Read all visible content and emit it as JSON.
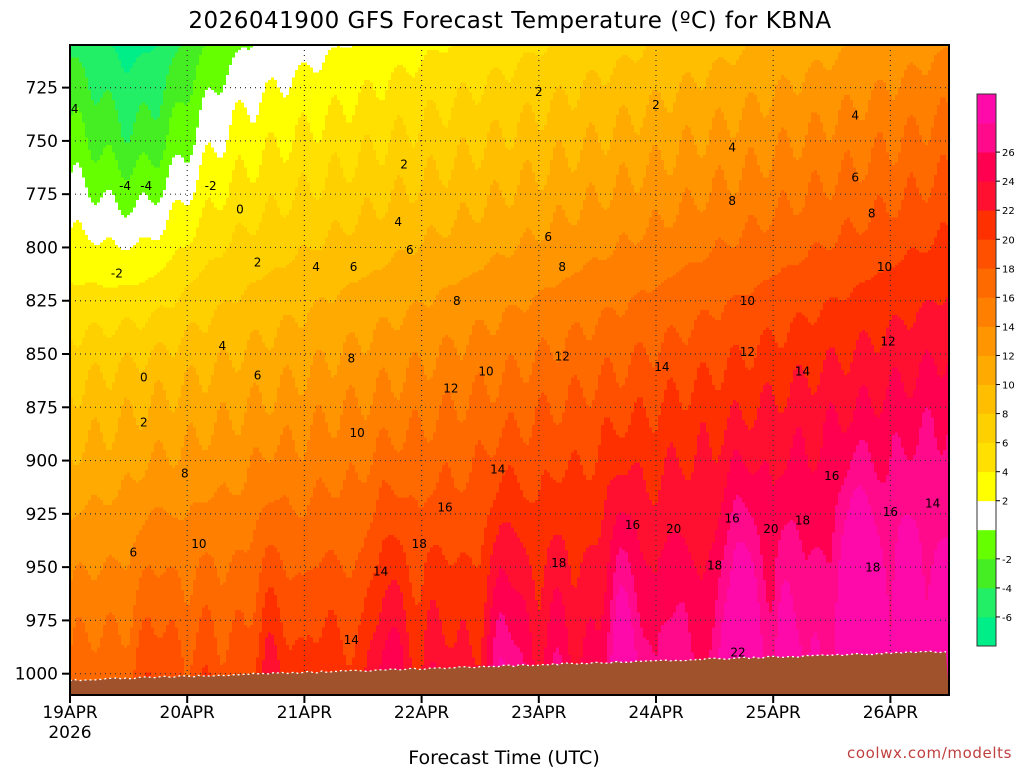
{
  "chart_data": {
    "type": "heatmap",
    "title": "2026041900 GFS Forecast Temperature (ºC) for KBNA",
    "xlabel": "Forecast Time (UTC)",
    "ylabel": "",
    "credit": "coolwx.com/modelts",
    "x_ticks": [
      "19APR",
      "20APR",
      "21APR",
      "22APR",
      "23APR",
      "24APR",
      "25APR",
      "26APR"
    ],
    "x_tick_sub": "2026",
    "xlim_days": [
      0,
      7.5
    ],
    "y_ticks": [
      725,
      750,
      775,
      800,
      825,
      850,
      875,
      900,
      925,
      950,
      975,
      1000
    ],
    "ylim_hpa": [
      1010,
      705
    ],
    "colorbar": {
      "ticks": [
        26,
        24,
        22,
        20,
        18,
        16,
        14,
        12,
        10,
        8,
        6,
        4,
        2,
        -2,
        -4,
        -6
      ],
      "levels": [
        -8,
        -6,
        -4,
        -2,
        0,
        2,
        4,
        6,
        8,
        10,
        12,
        14,
        16,
        18,
        20,
        22,
        24,
        26,
        28
      ],
      "colors": [
        "#00ee88",
        "#22ee66",
        "#44ee22",
        "#66ff00",
        "#ffffff",
        "#ffff00",
        "#ffe000",
        "#ffd000",
        "#ffbf00",
        "#ffaa00",
        "#ff9500",
        "#ff7f00",
        "#ff6a00",
        "#ff5000",
        "#ff3000",
        "#ff1030",
        "#ff0050",
        "#ff0a8a",
        "#ff0aaa"
      ]
    },
    "contour_labels": [
      {
        "day": 0.04,
        "hpa": 737,
        "text": "4"
      },
      {
        "day": 0.47,
        "hpa": 773,
        "text": "-4"
      },
      {
        "day": 0.65,
        "hpa": 773,
        "text": "-4"
      },
      {
        "day": 1.2,
        "hpa": 773,
        "text": "-2"
      },
      {
        "day": 0.4,
        "hpa": 814,
        "text": "-2"
      },
      {
        "day": 1.45,
        "hpa": 784,
        "text": "0"
      },
      {
        "day": 0.63,
        "hpa": 863,
        "text": "0"
      },
      {
        "day": 0.63,
        "hpa": 884,
        "text": "2"
      },
      {
        "day": 1.6,
        "hpa": 809,
        "text": "2"
      },
      {
        "day": 2.85,
        "hpa": 763,
        "text": "2"
      },
      {
        "day": 4.0,
        "hpa": 729,
        "text": "2"
      },
      {
        "day": 5.0,
        "hpa": 735,
        "text": "2"
      },
      {
        "day": 1.3,
        "hpa": 848,
        "text": "4"
      },
      {
        "day": 2.1,
        "hpa": 811,
        "text": "4"
      },
      {
        "day": 2.8,
        "hpa": 790,
        "text": "4"
      },
      {
        "day": 5.65,
        "hpa": 755,
        "text": "4"
      },
      {
        "day": 6.7,
        "hpa": 740,
        "text": "4"
      },
      {
        "day": 0.54,
        "hpa": 945,
        "text": "6"
      },
      {
        "day": 1.6,
        "hpa": 862,
        "text": "6"
      },
      {
        "day": 2.42,
        "hpa": 811,
        "text": "6"
      },
      {
        "day": 2.9,
        "hpa": 803,
        "text": "6"
      },
      {
        "day": 4.08,
        "hpa": 797,
        "text": "6"
      },
      {
        "day": 6.7,
        "hpa": 769,
        "text": "6"
      },
      {
        "day": 0.98,
        "hpa": 908,
        "text": "8"
      },
      {
        "day": 2.4,
        "hpa": 854,
        "text": "8"
      },
      {
        "day": 3.3,
        "hpa": 827,
        "text": "8"
      },
      {
        "day": 4.2,
        "hpa": 811,
        "text": "8"
      },
      {
        "day": 5.65,
        "hpa": 780,
        "text": "8"
      },
      {
        "day": 6.84,
        "hpa": 786,
        "text": "8"
      },
      {
        "day": 1.1,
        "hpa": 941,
        "text": "10"
      },
      {
        "day": 2.45,
        "hpa": 889,
        "text": "10"
      },
      {
        "day": 3.55,
        "hpa": 860,
        "text": "10"
      },
      {
        "day": 5.78,
        "hpa": 827,
        "text": "10"
      },
      {
        "day": 6.95,
        "hpa": 811,
        "text": "10"
      },
      {
        "day": 3.25,
        "hpa": 868,
        "text": "12"
      },
      {
        "day": 4.2,
        "hpa": 853,
        "text": "12"
      },
      {
        "day": 5.78,
        "hpa": 851,
        "text": "12"
      },
      {
        "day": 6.98,
        "hpa": 846,
        "text": "12"
      },
      {
        "day": 2.4,
        "hpa": 986,
        "text": "14"
      },
      {
        "day": 2.65,
        "hpa": 954,
        "text": "14"
      },
      {
        "day": 3.65,
        "hpa": 906,
        "text": "14"
      },
      {
        "day": 5.05,
        "hpa": 858,
        "text": "14"
      },
      {
        "day": 6.25,
        "hpa": 860,
        "text": "14"
      },
      {
        "day": 7.36,
        "hpa": 922,
        "text": "14"
      },
      {
        "day": 3.2,
        "hpa": 924,
        "text": "16"
      },
      {
        "day": 4.8,
        "hpa": 932,
        "text": "16"
      },
      {
        "day": 5.65,
        "hpa": 929,
        "text": "16"
      },
      {
        "day": 6.5,
        "hpa": 909,
        "text": "16"
      },
      {
        "day": 7.0,
        "hpa": 926,
        "text": "16"
      },
      {
        "day": 2.98,
        "hpa": 941,
        "text": "18"
      },
      {
        "day": 4.17,
        "hpa": 950,
        "text": "18"
      },
      {
        "day": 5.5,
        "hpa": 951,
        "text": "18"
      },
      {
        "day": 6.25,
        "hpa": 930,
        "text": "18"
      },
      {
        "day": 6.85,
        "hpa": 952,
        "text": "18"
      },
      {
        "day": 5.15,
        "hpa": 934,
        "text": "20"
      },
      {
        "day": 5.98,
        "hpa": 934,
        "text": "20"
      },
      {
        "day": 5.7,
        "hpa": 992,
        "text": "22"
      }
    ]
  }
}
